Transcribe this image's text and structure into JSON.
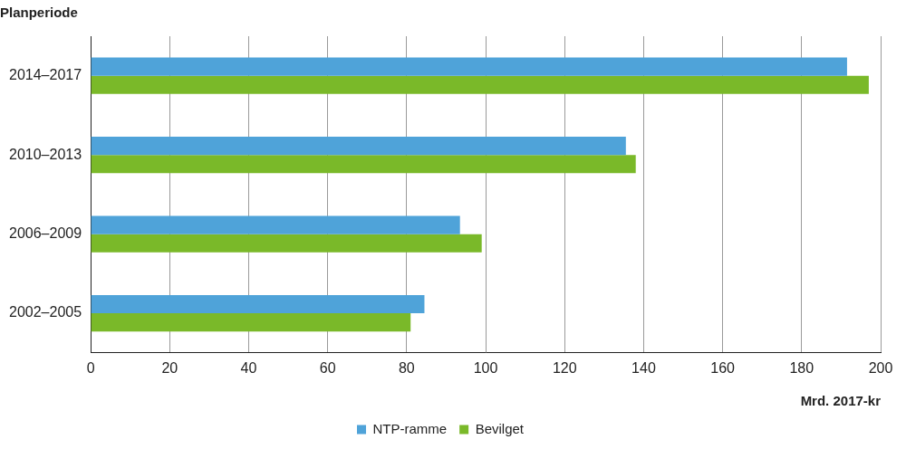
{
  "chart_data": {
    "type": "bar",
    "orientation": "horizontal",
    "ylabel": "Planperiode",
    "xlabel": "Mrd. 2017-kr",
    "categories": [
      "2014–2017",
      "2010–2013",
      "2006–2009",
      "2002–2005"
    ],
    "series": [
      {
        "name": "NTP-ramme",
        "color": "#4fa3d9",
        "values": [
          191.5,
          135.5,
          93.5,
          84.5
        ]
      },
      {
        "name": "Bevilget",
        "color": "#7ab929",
        "values": [
          197,
          138,
          99,
          81
        ]
      }
    ],
    "xlim": [
      0,
      200
    ],
    "xticks": [
      0,
      20,
      40,
      60,
      80,
      100,
      120,
      140,
      160,
      180,
      200
    ],
    "grid": true,
    "legend": "bottom"
  }
}
